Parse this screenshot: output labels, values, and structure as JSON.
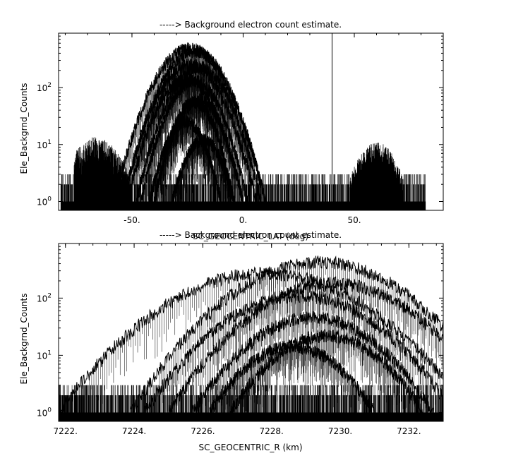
{
  "chart_data": [
    {
      "type": "line",
      "title": "-----> Background electron count estimate.",
      "xlabel": "SC_GEOCENTRIC_LAT (deg)",
      "ylabel": "Ele_Backgrnd_Counts",
      "x_ticks": [
        "-50.",
        "0.",
        "50."
      ],
      "x_tick_values": [
        -50,
        0,
        50
      ],
      "y_ticks": [
        "10",
        "10",
        "10"
      ],
      "y_tick_exponents": [
        "0",
        "1",
        "2"
      ],
      "y_tick_values": [
        1,
        10,
        100
      ],
      "y_scale": "log",
      "xlim": [
        -83,
        90
      ],
      "ylim": [
        0.7,
        900
      ],
      "grid": false,
      "marker_line_x": 40,
      "noise_band": {
        "x_range": [
          -82,
          82
        ],
        "min": 1,
        "max": 3
      },
      "clusters": [
        {
          "x_range": [
            -76,
            -50
          ],
          "peak": 11,
          "center": -66,
          "width": 12
        },
        {
          "x_range": [
            48,
            72
          ],
          "peak": 9,
          "center": 60,
          "width": 10
        }
      ],
      "series": [
        {
          "values": {
            "center": -24,
            "halfwidth": 34,
            "peak": 480
          }
        },
        {
          "values": {
            "center": -22,
            "halfwidth": 32,
            "peak": 430
          }
        },
        {
          "values": {
            "center": -24,
            "halfwidth": 30,
            "peak": 250
          }
        },
        {
          "values": {
            "center": -20,
            "halfwidth": 28,
            "peak": 230
          }
        },
        {
          "values": {
            "center": -26,
            "halfwidth": 26,
            "peak": 140
          }
        },
        {
          "values": {
            "center": -22,
            "halfwidth": 24,
            "peak": 130
          }
        },
        {
          "values": {
            "center": -20,
            "halfwidth": 20,
            "peak": 60
          }
        },
        {
          "values": {
            "center": -22,
            "halfwidth": 18,
            "peak": 55
          }
        },
        {
          "values": {
            "center": -26,
            "halfwidth": 16,
            "peak": 25
          }
        },
        {
          "values": {
            "center": -18,
            "halfwidth": 14,
            "peak": 12
          }
        }
      ]
    },
    {
      "type": "line",
      "title": "-----> Background electron count estimate.",
      "xlabel": "SC_GEOCENTRIC_R (km)",
      "ylabel": "Ele_Backgrnd_Counts",
      "x_ticks": [
        "7222.",
        "7224.",
        "7226.",
        "7228.",
        "7230.",
        "7232."
      ],
      "x_tick_values": [
        7222,
        7224,
        7226,
        7228,
        7230,
        7232
      ],
      "y_ticks": [
        "10",
        "10",
        "10"
      ],
      "y_tick_exponents": [
        "0",
        "1",
        "2"
      ],
      "y_tick_values": [
        1,
        10,
        100
      ],
      "y_scale": "log",
      "xlim": [
        7221.8,
        7233.0
      ],
      "ylim": [
        0.7,
        900
      ],
      "grid": false,
      "noise_band": {
        "x_range": [
          7221.8,
          7233.0
        ],
        "min": 1,
        "max": 3
      },
      "series": [
        {
          "values": {
            "center": 7229.4,
            "halfwidth": 5.5,
            "peak": 420
          }
        },
        {
          "values": {
            "center": 7227.8,
            "halfwidth": 6.0,
            "peak": 270
          }
        },
        {
          "values": {
            "center": 7229.8,
            "halfwidth": 4.8,
            "peak": 180
          }
        },
        {
          "values": {
            "center": 7228.8,
            "halfwidth": 4.5,
            "peak": 110
          }
        },
        {
          "values": {
            "center": 7229.2,
            "halfwidth": 3.5,
            "peak": 45
          }
        },
        {
          "values": {
            "center": 7229.6,
            "halfwidth": 2.8,
            "peak": 22
          }
        },
        {
          "values": {
            "center": 7228.6,
            "halfwidth": 2.4,
            "peak": 14
          }
        }
      ]
    }
  ]
}
